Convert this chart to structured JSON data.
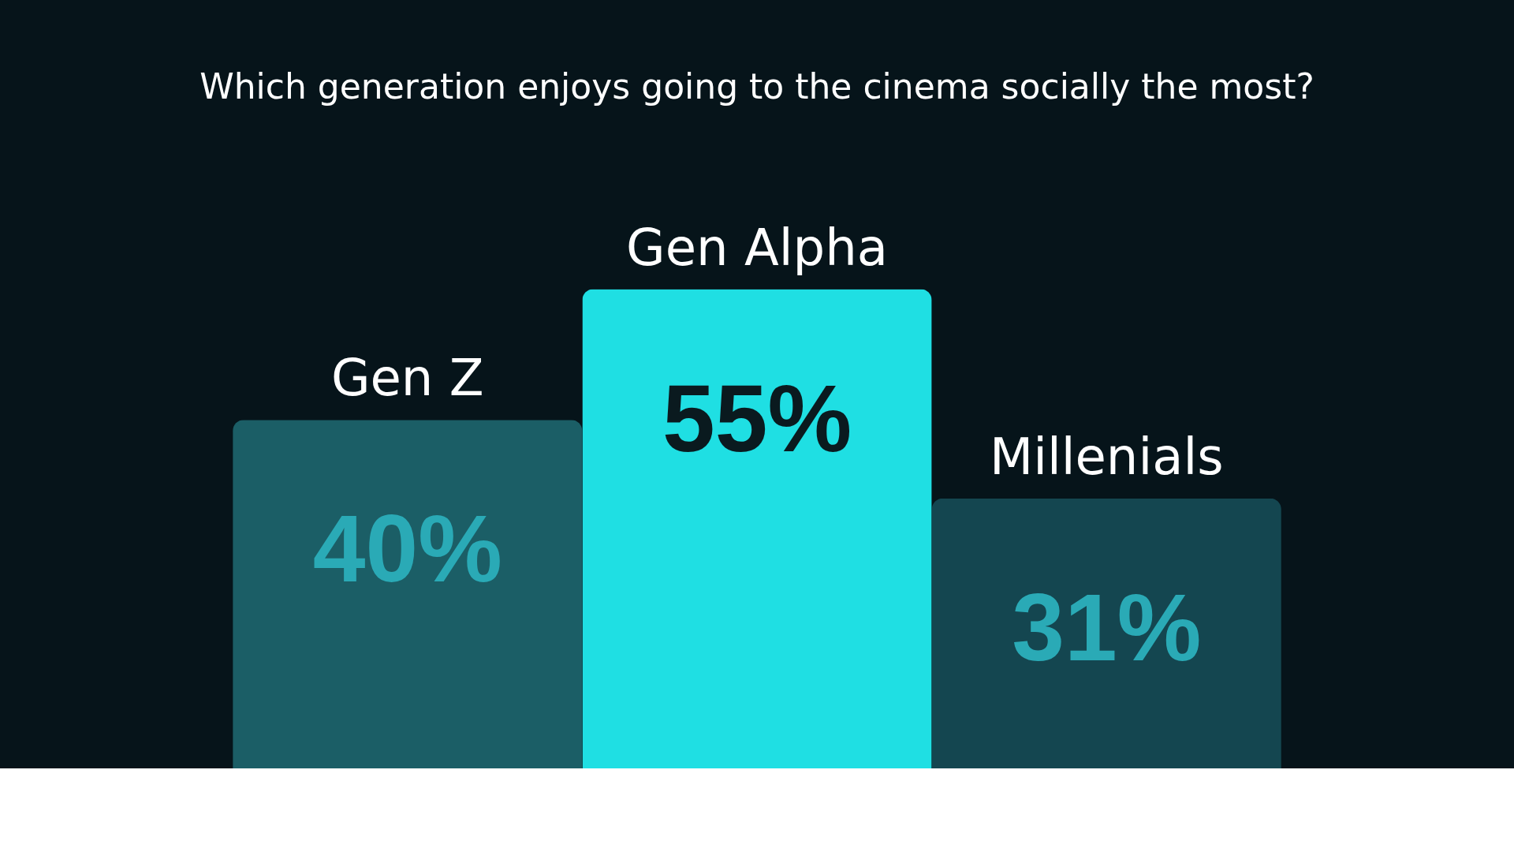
{
  "chart_data": {
    "type": "bar",
    "title": "Which generation enjoys going to the cinema socially the most?",
    "categories": [
      "Gen Z",
      "Gen Alpha",
      "Millenials"
    ],
    "values": [
      40,
      55,
      31
    ],
    "colors": [
      "#1b5e66",
      "#1fdfe3",
      "#144650"
    ],
    "value_labels": [
      "40%",
      "55%",
      "31%"
    ]
  }
}
